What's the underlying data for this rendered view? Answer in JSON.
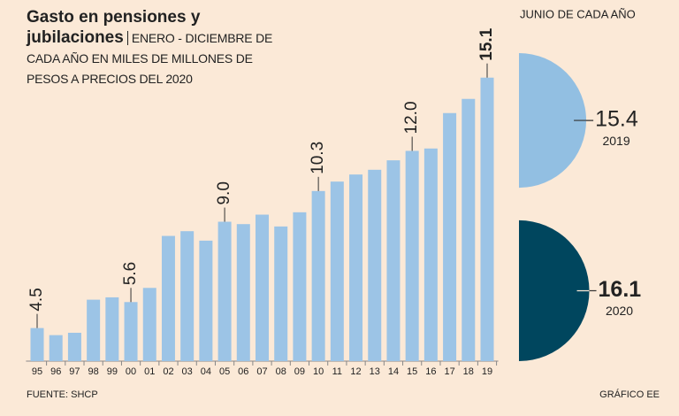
{
  "chart_data": [
    {
      "type": "bar",
      "title": "Gasto en pensiones y jubilaciones",
      "subtitle": "ENERO - DICIEMBRE DE CADA AÑO EN MILES DE MILLONES DE PESOS A PRECIOS DEL 2020",
      "categories": [
        "95",
        "96",
        "97",
        "98",
        "99",
        "00",
        "01",
        "02",
        "03",
        "04",
        "05",
        "06",
        "07",
        "08",
        "09",
        "10",
        "11",
        "12",
        "13",
        "14",
        "15",
        "16",
        "17",
        "18",
        "19"
      ],
      "values": [
        4.5,
        4.2,
        4.3,
        5.7,
        5.8,
        5.6,
        6.2,
        8.4,
        8.6,
        8.2,
        9.0,
        8.9,
        9.3,
        8.8,
        9.4,
        10.3,
        10.7,
        11.0,
        11.2,
        11.6,
        12.0,
        12.1,
        13.6,
        14.2,
        15.1
      ],
      "value_labels": [
        "4.5",
        null,
        null,
        null,
        null,
        "5.6",
        null,
        null,
        null,
        null,
        "9.0",
        null,
        null,
        null,
        null,
        "10.3",
        null,
        null,
        null,
        null,
        "12.0",
        null,
        null,
        null,
        "15.1"
      ],
      "color": "#9cc4e6",
      "ylim": [
        3.1,
        17
      ],
      "source": "FUENTE: SHCP",
      "credit": "GRÁFICO EE"
    },
    {
      "type": "semicircle",
      "title": "JUNIO DE CADA AÑO",
      "categories": [
        "2019",
        "2020"
      ],
      "values": [
        15.4,
        16.1
      ],
      "colors": [
        "#92bfe2",
        "#00465e"
      ]
    }
  ]
}
